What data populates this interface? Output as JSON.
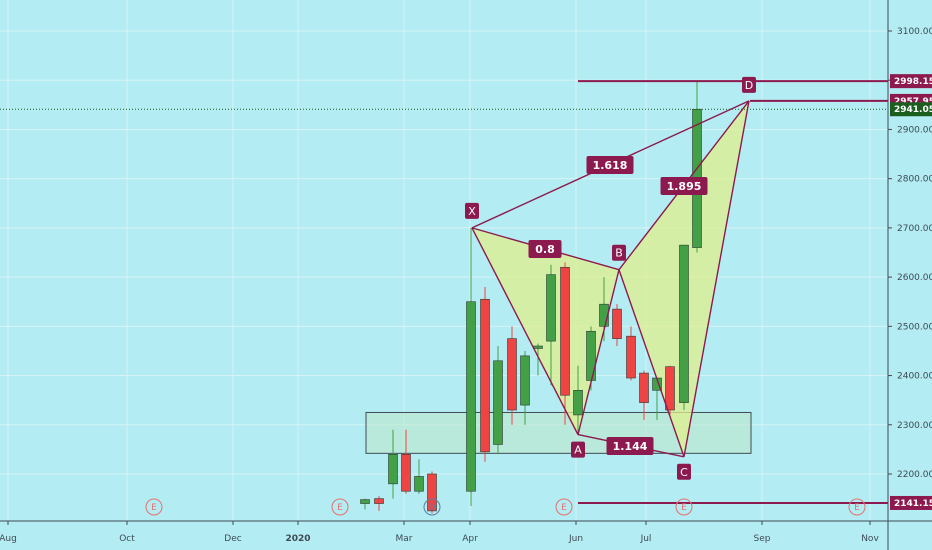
{
  "chart_data": {
    "type": "candlestick",
    "title": "",
    "colors": {
      "background": "#b3ecf2",
      "grid": "#d6f4f7",
      "up": "#43a047",
      "down": "#ef4444",
      "pattern_line": "#8d1a4f",
      "pattern_fill": "#e0ef8c",
      "zone_fill": "#bde7cc",
      "zone_border": "#3f4a55",
      "event": "#e57373",
      "dividend": "#5b7fa6",
      "last_price": "#1b5e20"
    },
    "y_axis": {
      "ylim": [
        2115,
        3150
      ],
      "ticks": [
        "2200.00",
        "2300.00",
        "2400.00",
        "2500.00",
        "2600.00",
        "2700.00",
        "2800.00",
        "2900.00",
        "3000.00",
        "3100.00"
      ]
    },
    "x_axis": {
      "ticks": [
        "Aug",
        "Oct",
        "Dec",
        "2020",
        "Mar",
        "Apr",
        "Jun",
        "Jul",
        "Sep",
        "Nov"
      ]
    },
    "candles": [
      {
        "open": 2140,
        "high": 2150,
        "low": 2128,
        "close": 2148,
        "dir": "up"
      },
      {
        "open": 2150,
        "high": 2155,
        "low": 2125,
        "close": 2140,
        "dir": "down"
      },
      {
        "open": 2180,
        "high": 2290,
        "low": 2150,
        "close": 2240,
        "dir": "up"
      },
      {
        "open": 2240,
        "high": 2290,
        "low": 2160,
        "close": 2165,
        "dir": "down"
      },
      {
        "open": 2165,
        "high": 2230,
        "low": 2160,
        "close": 2195,
        "dir": "up"
      },
      {
        "open": 2200,
        "high": 2205,
        "low": 2120,
        "close": 2125,
        "dir": "down"
      },
      {
        "open": 2165,
        "high": 2700,
        "low": 2135,
        "close": 2550,
        "dir": "up"
      },
      {
        "open": 2555,
        "high": 2580,
        "low": 2225,
        "close": 2245,
        "dir": "down"
      },
      {
        "open": 2260,
        "high": 2460,
        "low": 2240,
        "close": 2430,
        "dir": "up"
      },
      {
        "open": 2475,
        "high": 2500,
        "low": 2300,
        "close": 2330,
        "dir": "down"
      },
      {
        "open": 2340,
        "high": 2450,
        "low": 2300,
        "close": 2440,
        "dir": "up"
      },
      {
        "open": 2455,
        "high": 2465,
        "low": 2400,
        "close": 2460,
        "dir": "up"
      },
      {
        "open": 2470,
        "high": 2625,
        "low": 2380,
        "close": 2605,
        "dir": "up"
      },
      {
        "open": 2620,
        "high": 2630,
        "low": 2300,
        "close": 2360,
        "dir": "down"
      },
      {
        "open": 2320,
        "high": 2420,
        "low": 2280,
        "close": 2370,
        "dir": "up"
      },
      {
        "open": 2390,
        "high": 2500,
        "low": 2370,
        "close": 2490,
        "dir": "up"
      },
      {
        "open": 2500,
        "high": 2600,
        "low": 2470,
        "close": 2545,
        "dir": "up"
      },
      {
        "open": 2535,
        "high": 2545,
        "low": 2460,
        "close": 2475,
        "dir": "down"
      },
      {
        "open": 2480,
        "high": 2500,
        "low": 2390,
        "close": 2395,
        "dir": "down"
      },
      {
        "open": 2405,
        "high": 2410,
        "low": 2310,
        "close": 2345,
        "dir": "down"
      },
      {
        "open": 2370,
        "high": 2395,
        "low": 2310,
        "close": 2395,
        "dir": "up"
      },
      {
        "open": 2418,
        "high": 2420,
        "low": 2320,
        "close": 2330,
        "dir": "down"
      },
      {
        "open": 2345,
        "high": 2665,
        "low": 2330,
        "close": 2665,
        "dir": "up"
      },
      {
        "open": 2660,
        "high": 2998,
        "low": 2650,
        "close": 2941,
        "dir": "up"
      }
    ],
    "pattern": {
      "name": "",
      "points": [
        {
          "label": "X",
          "value": 2700
        },
        {
          "label": "A",
          "value": 2280
        },
        {
          "label": "B",
          "value": 2615
        },
        {
          "label": "C",
          "value": 2235
        },
        {
          "label": "D",
          "value": 2958
        }
      ],
      "ratios": [
        {
          "label": "0.8",
          "between": "XA-AB"
        },
        {
          "label": "1.618",
          "between": "XD"
        },
        {
          "label": "1.144",
          "between": "AC"
        },
        {
          "label": "1.895",
          "between": "BCD"
        }
      ]
    },
    "zone": {
      "low": 2242,
      "high": 2325
    },
    "price_levels": [
      {
        "label": "2998.15",
        "value": 2998.15
      },
      {
        "label": "2957.95",
        "value": 2957.95
      },
      {
        "label": "2141.15",
        "value": 2141.15
      }
    ],
    "last_price": {
      "label": "2941.05",
      "value": 2941.05
    },
    "events": [
      "E",
      "E",
      "D",
      "E",
      "E",
      "E"
    ]
  }
}
